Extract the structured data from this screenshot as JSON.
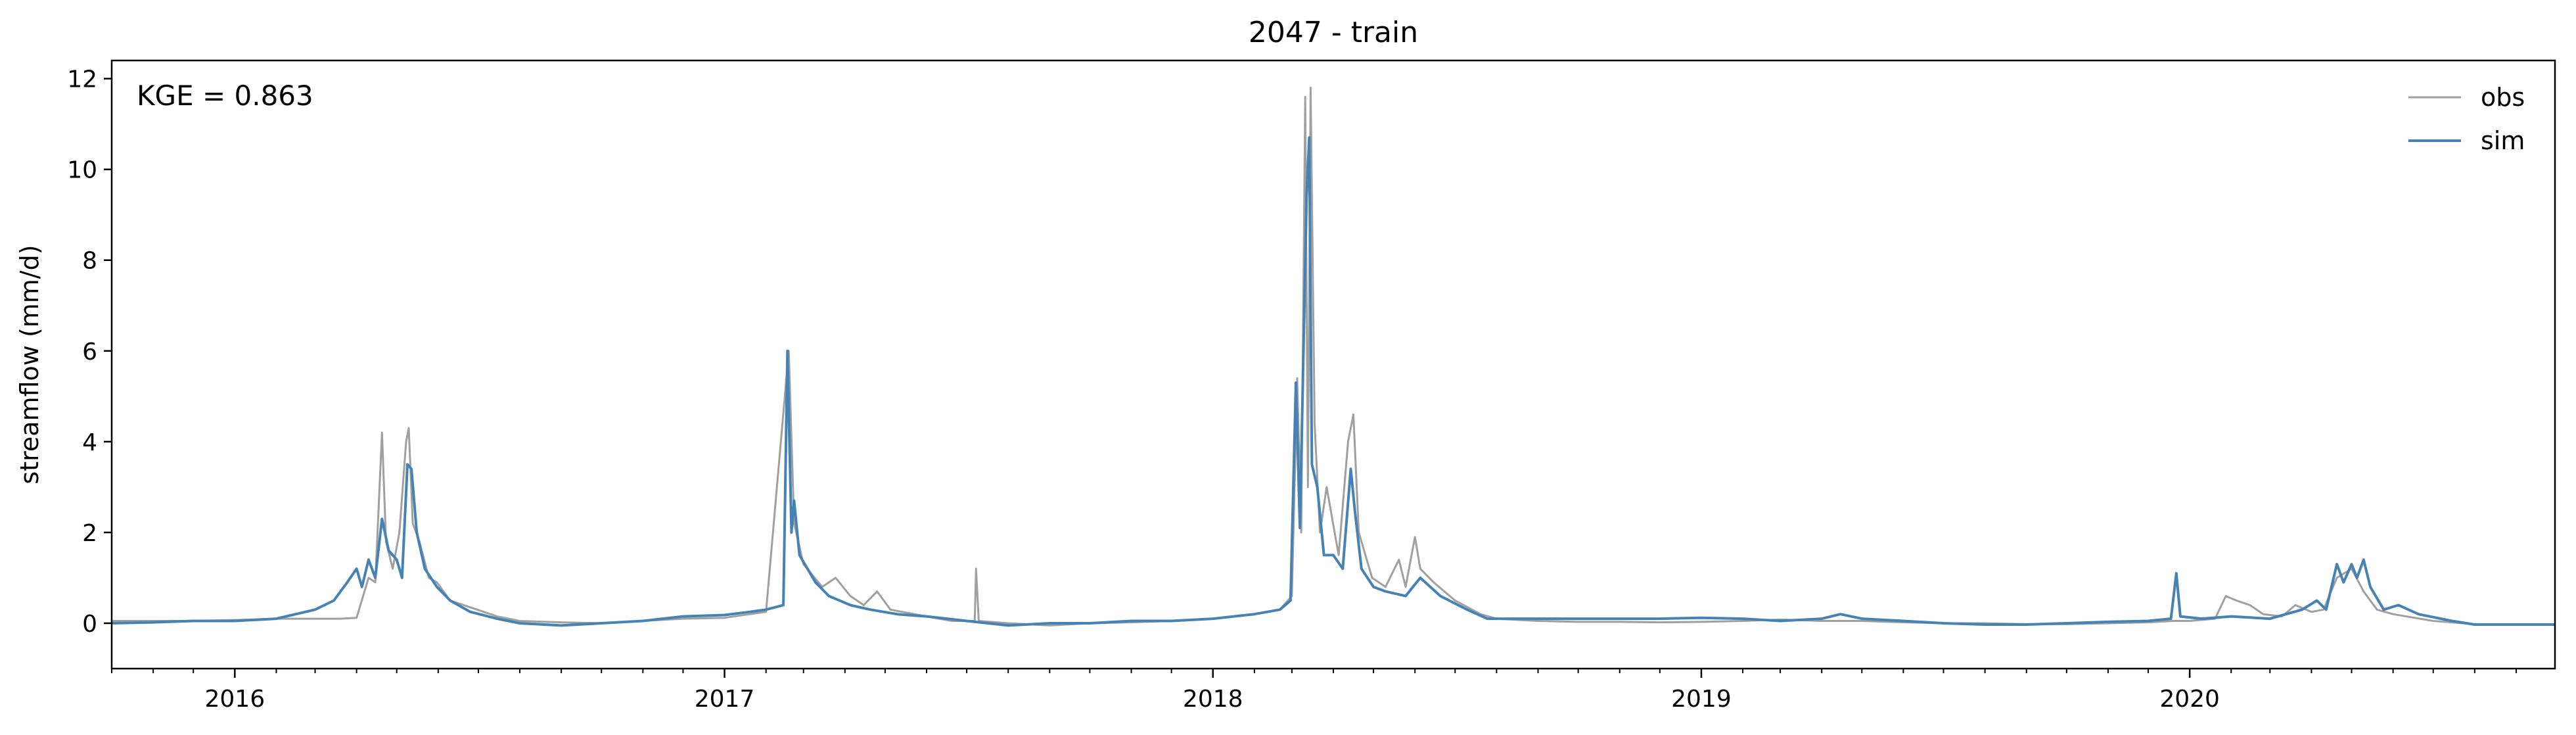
{
  "chart_data": {
    "type": "line",
    "title": "2047 - train",
    "xlabel": "",
    "ylabel": "streamflow (mm/d)",
    "xlim": [
      "2015-10-01",
      "2020-09-30"
    ],
    "ylim": [
      -1.0,
      12.4
    ],
    "yticks": [
      0,
      2,
      4,
      6,
      8,
      10,
      12
    ],
    "xticks": [
      {
        "label": "2016",
        "date": "2016-01-01"
      },
      {
        "label": "2017",
        "date": "2017-01-01"
      },
      {
        "label": "2018",
        "date": "2018-01-01"
      },
      {
        "label": "2019",
        "date": "2019-01-01"
      },
      {
        "label": "2020",
        "date": "2020-01-01"
      }
    ],
    "annotation": "KGE = 0.863",
    "legend": {
      "placement": "top-right",
      "entries": [
        "obs",
        "sim"
      ]
    },
    "grid": false,
    "series": [
      {
        "name": "obs",
        "color": "#a0a0a0",
        "points": [
          [
            "2015-10-01",
            0.05
          ],
          [
            "2015-11-01",
            0.05
          ],
          [
            "2015-12-01",
            0.05
          ],
          [
            "2016-01-01",
            0.07
          ],
          [
            "2016-02-01",
            0.1
          ],
          [
            "2016-03-01",
            0.1
          ],
          [
            "2016-03-20",
            0.1
          ],
          [
            "2016-04-01",
            0.12
          ],
          [
            "2016-04-10",
            1.0
          ],
          [
            "2016-04-15",
            0.9
          ],
          [
            "2016-04-20",
            4.2
          ],
          [
            "2016-04-23",
            1.8
          ],
          [
            "2016-04-28",
            1.2
          ],
          [
            "2016-05-03",
            2.0
          ],
          [
            "2016-05-08",
            4.0
          ],
          [
            "2016-05-10",
            4.3
          ],
          [
            "2016-05-13",
            2.2
          ],
          [
            "2016-05-18",
            1.8
          ],
          [
            "2016-05-25",
            1.0
          ],
          [
            "2016-05-31",
            0.9
          ],
          [
            "2016-06-10",
            0.5
          ],
          [
            "2016-06-25",
            0.35
          ],
          [
            "2016-07-15",
            0.15
          ],
          [
            "2016-08-01",
            0.05
          ],
          [
            "2016-09-01",
            0.02
          ],
          [
            "2016-10-01",
            0.0
          ],
          [
            "2016-11-01",
            0.05
          ],
          [
            "2016-12-01",
            0.1
          ],
          [
            "2017-01-01",
            0.12
          ],
          [
            "2017-01-20",
            0.2
          ],
          [
            "2017-02-01",
            0.25
          ],
          [
            "2017-02-18",
            6.0
          ],
          [
            "2017-02-22",
            2.2
          ],
          [
            "2017-03-01",
            1.3
          ],
          [
            "2017-03-15",
            0.8
          ],
          [
            "2017-03-25",
            1.0
          ],
          [
            "2017-04-05",
            0.6
          ],
          [
            "2017-04-15",
            0.4
          ],
          [
            "2017-04-25",
            0.7
          ],
          [
            "2017-05-05",
            0.3
          ],
          [
            "2017-06-01",
            0.15
          ],
          [
            "2017-06-20",
            0.05
          ],
          [
            "2017-07-07",
            0.05
          ],
          [
            "2017-07-08",
            1.2
          ],
          [
            "2017-07-10",
            0.05
          ],
          [
            "2017-08-01",
            0.0
          ],
          [
            "2017-09-01",
            -0.05
          ],
          [
            "2017-10-01",
            0.0
          ],
          [
            "2017-11-01",
            0.02
          ],
          [
            "2017-12-01",
            0.05
          ],
          [
            "2018-01-01",
            0.1
          ],
          [
            "2018-02-01",
            0.2
          ],
          [
            "2018-02-20",
            0.3
          ],
          [
            "2018-03-01",
            0.6
          ],
          [
            "2018-03-05",
            5.4
          ],
          [
            "2018-03-08",
            2.0
          ],
          [
            "2018-03-11",
            11.6
          ],
          [
            "2018-03-13",
            3.0
          ],
          [
            "2018-03-15",
            11.8
          ],
          [
            "2018-03-18",
            4.4
          ],
          [
            "2018-03-22",
            2.0
          ],
          [
            "2018-03-27",
            3.0
          ],
          [
            "2018-04-05",
            1.5
          ],
          [
            "2018-04-12",
            4.0
          ],
          [
            "2018-04-16",
            4.6
          ],
          [
            "2018-04-20",
            2.0
          ],
          [
            "2018-04-30",
            1.0
          ],
          [
            "2018-05-10",
            0.8
          ],
          [
            "2018-05-20",
            1.4
          ],
          [
            "2018-05-25",
            0.8
          ],
          [
            "2018-06-01",
            1.9
          ],
          [
            "2018-06-05",
            1.2
          ],
          [
            "2018-06-15",
            0.9
          ],
          [
            "2018-07-01",
            0.5
          ],
          [
            "2018-07-20",
            0.2
          ],
          [
            "2018-08-01",
            0.1
          ],
          [
            "2018-09-01",
            0.05
          ],
          [
            "2018-10-01",
            0.03
          ],
          [
            "2018-11-01",
            0.03
          ],
          [
            "2018-12-01",
            0.02
          ],
          [
            "2019-01-01",
            0.03
          ],
          [
            "2019-02-01",
            0.05
          ],
          [
            "2019-03-01",
            0.08
          ],
          [
            "2019-04-01",
            0.05
          ],
          [
            "2019-05-01",
            0.05
          ],
          [
            "2019-06-01",
            0.02
          ],
          [
            "2019-07-01",
            0.0
          ],
          [
            "2019-08-01",
            0.0
          ],
          [
            "2019-09-01",
            -0.02
          ],
          [
            "2019-10-01",
            -0.02
          ],
          [
            "2019-11-01",
            0.0
          ],
          [
            "2019-12-01",
            0.02
          ],
          [
            "2019-12-20",
            0.05
          ],
          [
            "2020-01-01",
            0.05
          ],
          [
            "2020-01-20",
            0.1
          ],
          [
            "2020-01-28",
            0.6
          ],
          [
            "2020-02-05",
            0.5
          ],
          [
            "2020-02-15",
            0.4
          ],
          [
            "2020-02-25",
            0.2
          ],
          [
            "2020-03-10",
            0.15
          ],
          [
            "2020-03-20",
            0.4
          ],
          [
            "2020-04-01",
            0.25
          ],
          [
            "2020-04-10",
            0.3
          ],
          [
            "2020-04-20",
            1.0
          ],
          [
            "2020-05-01",
            1.2
          ],
          [
            "2020-05-10",
            0.7
          ],
          [
            "2020-05-20",
            0.3
          ],
          [
            "2020-06-01",
            0.2
          ],
          [
            "2020-07-01",
            0.05
          ],
          [
            "2020-08-01",
            -0.02
          ],
          [
            "2020-09-30",
            -0.02
          ]
        ]
      },
      {
        "name": "sim",
        "color": "#4682b4",
        "points": [
          [
            "2015-10-01",
            0.0
          ],
          [
            "2015-11-01",
            0.02
          ],
          [
            "2015-12-01",
            0.05
          ],
          [
            "2016-01-01",
            0.05
          ],
          [
            "2016-02-01",
            0.1
          ],
          [
            "2016-03-01",
            0.3
          ],
          [
            "2016-03-15",
            0.5
          ],
          [
            "2016-03-25",
            0.9
          ],
          [
            "2016-04-01",
            1.2
          ],
          [
            "2016-04-05",
            0.8
          ],
          [
            "2016-04-10",
            1.4
          ],
          [
            "2016-04-15",
            1.0
          ],
          [
            "2016-04-20",
            2.3
          ],
          [
            "2016-04-25",
            1.6
          ],
          [
            "2016-05-01",
            1.4
          ],
          [
            "2016-05-05",
            1.0
          ],
          [
            "2016-05-09",
            3.5
          ],
          [
            "2016-05-12",
            3.4
          ],
          [
            "2016-05-16",
            2.0
          ],
          [
            "2016-05-22",
            1.2
          ],
          [
            "2016-05-31",
            0.8
          ],
          [
            "2016-06-10",
            0.5
          ],
          [
            "2016-06-25",
            0.25
          ],
          [
            "2016-07-15",
            0.1
          ],
          [
            "2016-08-01",
            0.0
          ],
          [
            "2016-09-01",
            -0.05
          ],
          [
            "2016-10-01",
            0.0
          ],
          [
            "2016-11-01",
            0.05
          ],
          [
            "2016-12-01",
            0.15
          ],
          [
            "2017-01-01",
            0.18
          ],
          [
            "2017-01-20",
            0.25
          ],
          [
            "2017-02-01",
            0.3
          ],
          [
            "2017-02-14",
            0.4
          ],
          [
            "2017-02-17",
            6.0
          ],
          [
            "2017-02-20",
            2.0
          ],
          [
            "2017-02-22",
            2.7
          ],
          [
            "2017-02-26",
            1.5
          ],
          [
            "2017-03-10",
            0.9
          ],
          [
            "2017-03-20",
            0.6
          ],
          [
            "2017-04-05",
            0.4
          ],
          [
            "2017-04-20",
            0.3
          ],
          [
            "2017-05-10",
            0.2
          ],
          [
            "2017-06-01",
            0.15
          ],
          [
            "2017-07-01",
            0.05
          ],
          [
            "2017-08-01",
            -0.05
          ],
          [
            "2017-09-01",
            0.0
          ],
          [
            "2017-10-01",
            0.0
          ],
          [
            "2017-11-01",
            0.05
          ],
          [
            "2017-12-01",
            0.05
          ],
          [
            "2018-01-01",
            0.1
          ],
          [
            "2018-02-01",
            0.2
          ],
          [
            "2018-02-20",
            0.3
          ],
          [
            "2018-02-28",
            0.5
          ],
          [
            "2018-03-04",
            5.3
          ],
          [
            "2018-03-07",
            2.1
          ],
          [
            "2018-03-12",
            9.4
          ],
          [
            "2018-03-14",
            10.7
          ],
          [
            "2018-03-16",
            3.5
          ],
          [
            "2018-03-20",
            3.0
          ],
          [
            "2018-03-25",
            1.5
          ],
          [
            "2018-04-01",
            1.5
          ],
          [
            "2018-04-08",
            1.2
          ],
          [
            "2018-04-14",
            3.4
          ],
          [
            "2018-04-17",
            2.5
          ],
          [
            "2018-04-22",
            1.2
          ],
          [
            "2018-05-01",
            0.8
          ],
          [
            "2018-05-10",
            0.7
          ],
          [
            "2018-05-25",
            0.6
          ],
          [
            "2018-06-05",
            1.0
          ],
          [
            "2018-06-20",
            0.6
          ],
          [
            "2018-07-10",
            0.3
          ],
          [
            "2018-07-25",
            0.1
          ],
          [
            "2018-08-01",
            0.1
          ],
          [
            "2018-09-01",
            0.1
          ],
          [
            "2018-10-01",
            0.1
          ],
          [
            "2018-11-01",
            0.1
          ],
          [
            "2018-12-01",
            0.1
          ],
          [
            "2019-01-01",
            0.12
          ],
          [
            "2019-02-01",
            0.1
          ],
          [
            "2019-03-01",
            0.05
          ],
          [
            "2019-04-01",
            0.1
          ],
          [
            "2019-04-15",
            0.2
          ],
          [
            "2019-05-01",
            0.1
          ],
          [
            "2019-06-01",
            0.05
          ],
          [
            "2019-07-01",
            0.0
          ],
          [
            "2019-08-01",
            -0.03
          ],
          [
            "2019-09-01",
            -0.03
          ],
          [
            "2019-10-01",
            0.0
          ],
          [
            "2019-11-01",
            0.03
          ],
          [
            "2019-12-01",
            0.05
          ],
          [
            "2019-12-18",
            0.1
          ],
          [
            "2019-12-22",
            1.1
          ],
          [
            "2019-12-25",
            0.15
          ],
          [
            "2020-01-10",
            0.1
          ],
          [
            "2020-02-01",
            0.15
          ],
          [
            "2020-03-01",
            0.1
          ],
          [
            "2020-03-25",
            0.3
          ],
          [
            "2020-04-05",
            0.5
          ],
          [
            "2020-04-12",
            0.3
          ],
          [
            "2020-04-20",
            1.3
          ],
          [
            "2020-04-25",
            0.9
          ],
          [
            "2020-05-01",
            1.3
          ],
          [
            "2020-05-05",
            1.0
          ],
          [
            "2020-05-10",
            1.4
          ],
          [
            "2020-05-15",
            0.8
          ],
          [
            "2020-05-25",
            0.3
          ],
          [
            "2020-06-05",
            0.4
          ],
          [
            "2020-06-20",
            0.2
          ],
          [
            "2020-07-15",
            0.05
          ],
          [
            "2020-08-01",
            -0.03
          ],
          [
            "2020-09-30",
            -0.03
          ]
        ]
      }
    ]
  }
}
